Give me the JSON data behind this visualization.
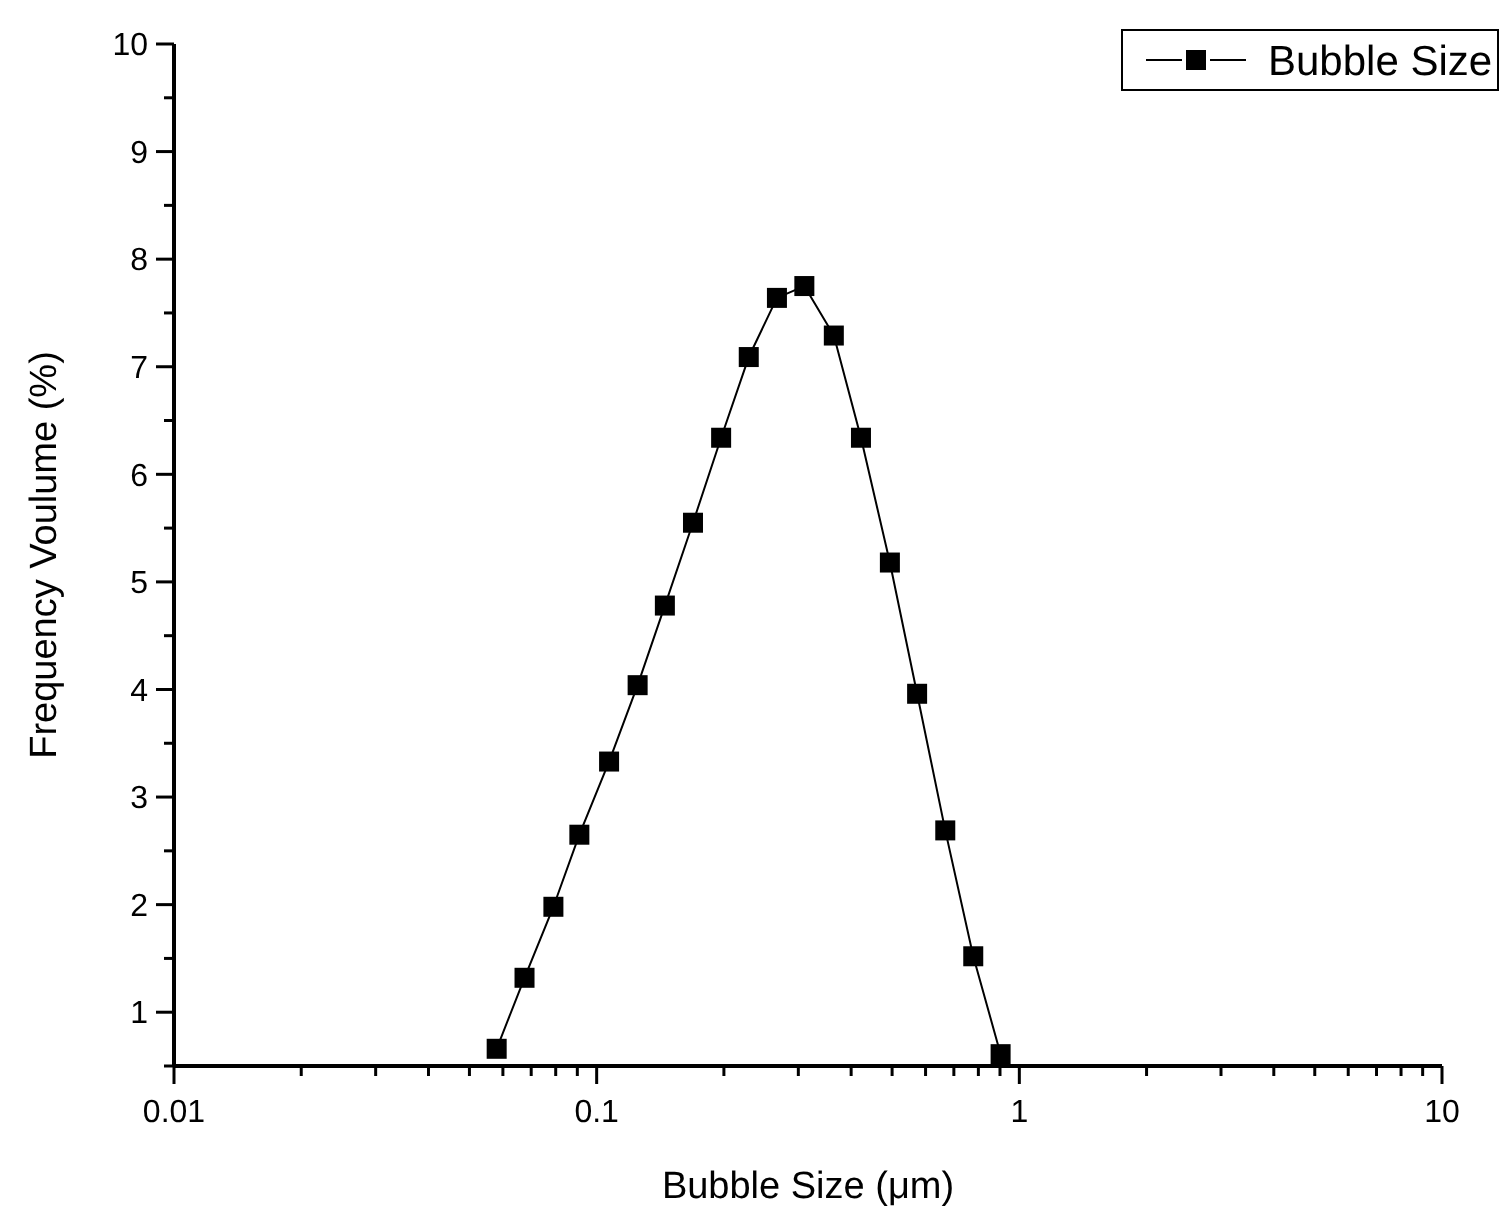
{
  "chart_data": {
    "type": "line",
    "xlabel": "Bubble Size (μm)",
    "ylabel": "Frequency Voulume (%)",
    "log": "x",
    "xlim": [
      0.01,
      10
    ],
    "ylim": [
      0.5,
      10
    ],
    "xticks": [
      0.01,
      {
        "value": 0.02,
        "label": null
      },
      {
        "value": 0.03,
        "label": null
      },
      {
        "value": 0.04,
        "label": null
      },
      {
        "value": 0.05,
        "label": null
      },
      {
        "value": 0.06,
        "label": null
      },
      {
        "value": 0.07,
        "label": null
      },
      {
        "value": 0.08,
        "label": null
      },
      {
        "value": 0.09,
        "label": null
      },
      0.1,
      {
        "value": 0.2,
        "label": null
      },
      {
        "value": 0.3,
        "label": null
      },
      {
        "value": 0.4,
        "label": null
      },
      {
        "value": 0.5,
        "label": null
      },
      {
        "value": 0.6,
        "label": null
      },
      {
        "value": 0.7,
        "label": null
      },
      {
        "value": 0.8,
        "label": null
      },
      {
        "value": 0.9,
        "label": null
      },
      1,
      {
        "value": 2,
        "label": null
      },
      {
        "value": 3,
        "label": null
      },
      {
        "value": 4,
        "label": null
      },
      {
        "value": 5,
        "label": null
      },
      {
        "value": 6,
        "label": null
      },
      {
        "value": 7,
        "label": null
      },
      {
        "value": 8,
        "label": null
      },
      {
        "value": 9,
        "label": null
      },
      10
    ],
    "yticks": [
      {
        "value": 0.5,
        "label": null
      },
      1,
      {
        "value": 1.5,
        "label": null
      },
      2,
      {
        "value": 2.5,
        "label": null
      },
      3,
      {
        "value": 3.5,
        "label": null
      },
      4,
      {
        "value": 4.5,
        "label": null
      },
      5,
      {
        "value": 5.5,
        "label": null
      },
      6,
      {
        "value": 6.5,
        "label": null
      },
      7,
      {
        "value": 7.5,
        "label": null
      },
      8,
      {
        "value": 8.5,
        "label": null
      },
      9,
      {
        "value": 9.5,
        "label": null
      },
      10
    ],
    "grid": false,
    "legend": "top right",
    "marker": "square",
    "line_style": "solid",
    "series": [
      {
        "name": "Bubble Size",
        "color": "#000000",
        "x": [
          0.058,
          0.0675,
          0.079,
          0.091,
          0.107,
          0.125,
          0.145,
          0.169,
          0.197,
          0.229,
          0.267,
          0.31,
          0.364,
          0.422,
          0.494,
          0.573,
          0.668,
          0.778,
          0.903
        ],
        "values": [
          0.66,
          1.32,
          1.98,
          2.65,
          3.33,
          4.04,
          4.78,
          5.55,
          6.34,
          7.09,
          7.64,
          7.75,
          7.29,
          6.34,
          5.18,
          3.96,
          2.69,
          1.52,
          0.61
        ]
      }
    ]
  }
}
